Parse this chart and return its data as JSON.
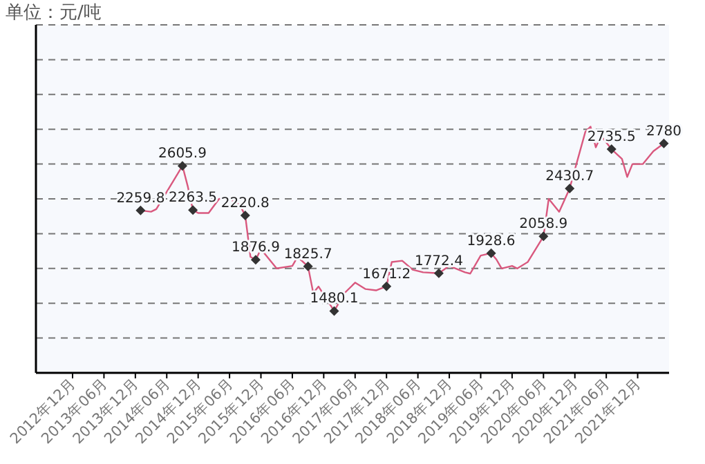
{
  "chart_data": {
    "type": "line",
    "ylabel": "单位：元/吨",
    "x": [
      "2014-01",
      "2014-03",
      "2014-04",
      "2014-09",
      "2014-10",
      "2014-11",
      "2014-12",
      "2015-02",
      "2015-04",
      "2015-06",
      "2015-08",
      "2015-09",
      "2015-10",
      "2015-11",
      "2015-12",
      "2016-03",
      "2016-06",
      "2016-07",
      "2016-09",
      "2016-10",
      "2016-11",
      "2017-02",
      "2017-04",
      "2017-06",
      "2017-08",
      "2017-10",
      "2017-12",
      "2018-01",
      "2018-03",
      "2018-05",
      "2018-07",
      "2018-10",
      "2018-12",
      "2019-03",
      "2019-04",
      "2019-06",
      "2019-08",
      "2019-09",
      "2019-10",
      "2019-12",
      "2020-01",
      "2020-03",
      "2020-06",
      "2020-07",
      "2020-09",
      "2020-11",
      "2021-02",
      "2021-03",
      "2021-04",
      "2021-05",
      "2021-07",
      "2021-09",
      "2021-10",
      "2021-11",
      "2022-01",
      "2022-03",
      "2022-05"
    ],
    "series": [
      {
        "color": "#d9587e",
        "values": [
          2259.8,
          2250,
          2270,
          2605.9,
          2450,
          2263.5,
          2240,
          2240,
          2350,
          2350,
          2300,
          2220.8,
          1900,
          1876.9,
          1960,
          1810,
          1830,
          1900,
          1825.7,
          1620,
          1670,
          1480.1,
          1620,
          1700,
          1650,
          1640,
          1671.2,
          1860,
          1870,
          1800,
          1780,
          1772.4,
          1830,
          1780,
          1770,
          1910,
          1928.6,
          1880,
          1810,
          1830,
          1810,
          1860,
          2058.9,
          2350,
          2250,
          2430.7,
          2870,
          2910,
          2750,
          2840,
          2735.5,
          2660,
          2520,
          2620,
          2620,
          2720,
          2780
        ],
        "value_labels": [
          "2259.8",
          null,
          null,
          "2605.9",
          null,
          "2263.5",
          null,
          null,
          null,
          null,
          null,
          "2220.8",
          null,
          "1876.9",
          null,
          null,
          null,
          null,
          "1825.7",
          null,
          null,
          "1480.1",
          null,
          null,
          null,
          null,
          "1671.2",
          null,
          null,
          null,
          null,
          "1772.4",
          null,
          null,
          null,
          null,
          "1928.6",
          null,
          null,
          null,
          null,
          null,
          "2058.9",
          null,
          null,
          "2430.7",
          null,
          null,
          null,
          null,
          "2735.5",
          null,
          null,
          null,
          null,
          null,
          "2780"
        ]
      }
    ],
    "grid": "y",
    "tick_labels": "x",
    "xlim": [
      "2012-05",
      "2022-06"
    ],
    "ylim": [
      1000,
      3700
    ],
    "xticks": [
      {
        "value": "2012-12",
        "label": "2012年12月"
      },
      {
        "value": "2013-06",
        "label": "2013年06月"
      },
      {
        "value": "2013-12",
        "label": "2013年12月"
      },
      {
        "value": "2014-06",
        "label": "2014年06月"
      },
      {
        "value": "2014-12",
        "label": "2014年12月"
      },
      {
        "value": "2015-06",
        "label": "2015年06月"
      },
      {
        "value": "2015-12",
        "label": "2015年12月"
      },
      {
        "value": "2016-06",
        "label": "2016年06月"
      },
      {
        "value": "2016-12",
        "label": "2016年12月"
      },
      {
        "value": "2017-06",
        "label": "2017年06月"
      },
      {
        "value": "2017-12",
        "label": "2017年12月"
      },
      {
        "value": "2018-06",
        "label": "2018年06月"
      },
      {
        "value": "2018-12",
        "label": "2018年12月"
      },
      {
        "value": "2019-06",
        "label": "2019年06月"
      },
      {
        "value": "2019-12",
        "label": "2019年12月"
      },
      {
        "value": "2020-06",
        "label": "2020年06月"
      },
      {
        "value": "2020-12",
        "label": "2020年12月"
      },
      {
        "value": "2021-06",
        "label": "2021年06月"
      },
      {
        "value": "2021-12",
        "label": "2021年12月"
      }
    ],
    "yticks": [
      {
        "value": 1000,
        "label": null
      },
      {
        "value": 1270,
        "label": null
      },
      {
        "value": 1540,
        "label": null
      },
      {
        "value": 1810,
        "label": null
      },
      {
        "value": 2080,
        "label": null
      },
      {
        "value": 2350,
        "label": null
      },
      {
        "value": 2620,
        "label": null
      },
      {
        "value": 2890,
        "label": null
      },
      {
        "value": 3160,
        "label": null
      },
      {
        "value": 3430,
        "label": null
      },
      {
        "value": 3700,
        "label": null
      }
    ]
  }
}
